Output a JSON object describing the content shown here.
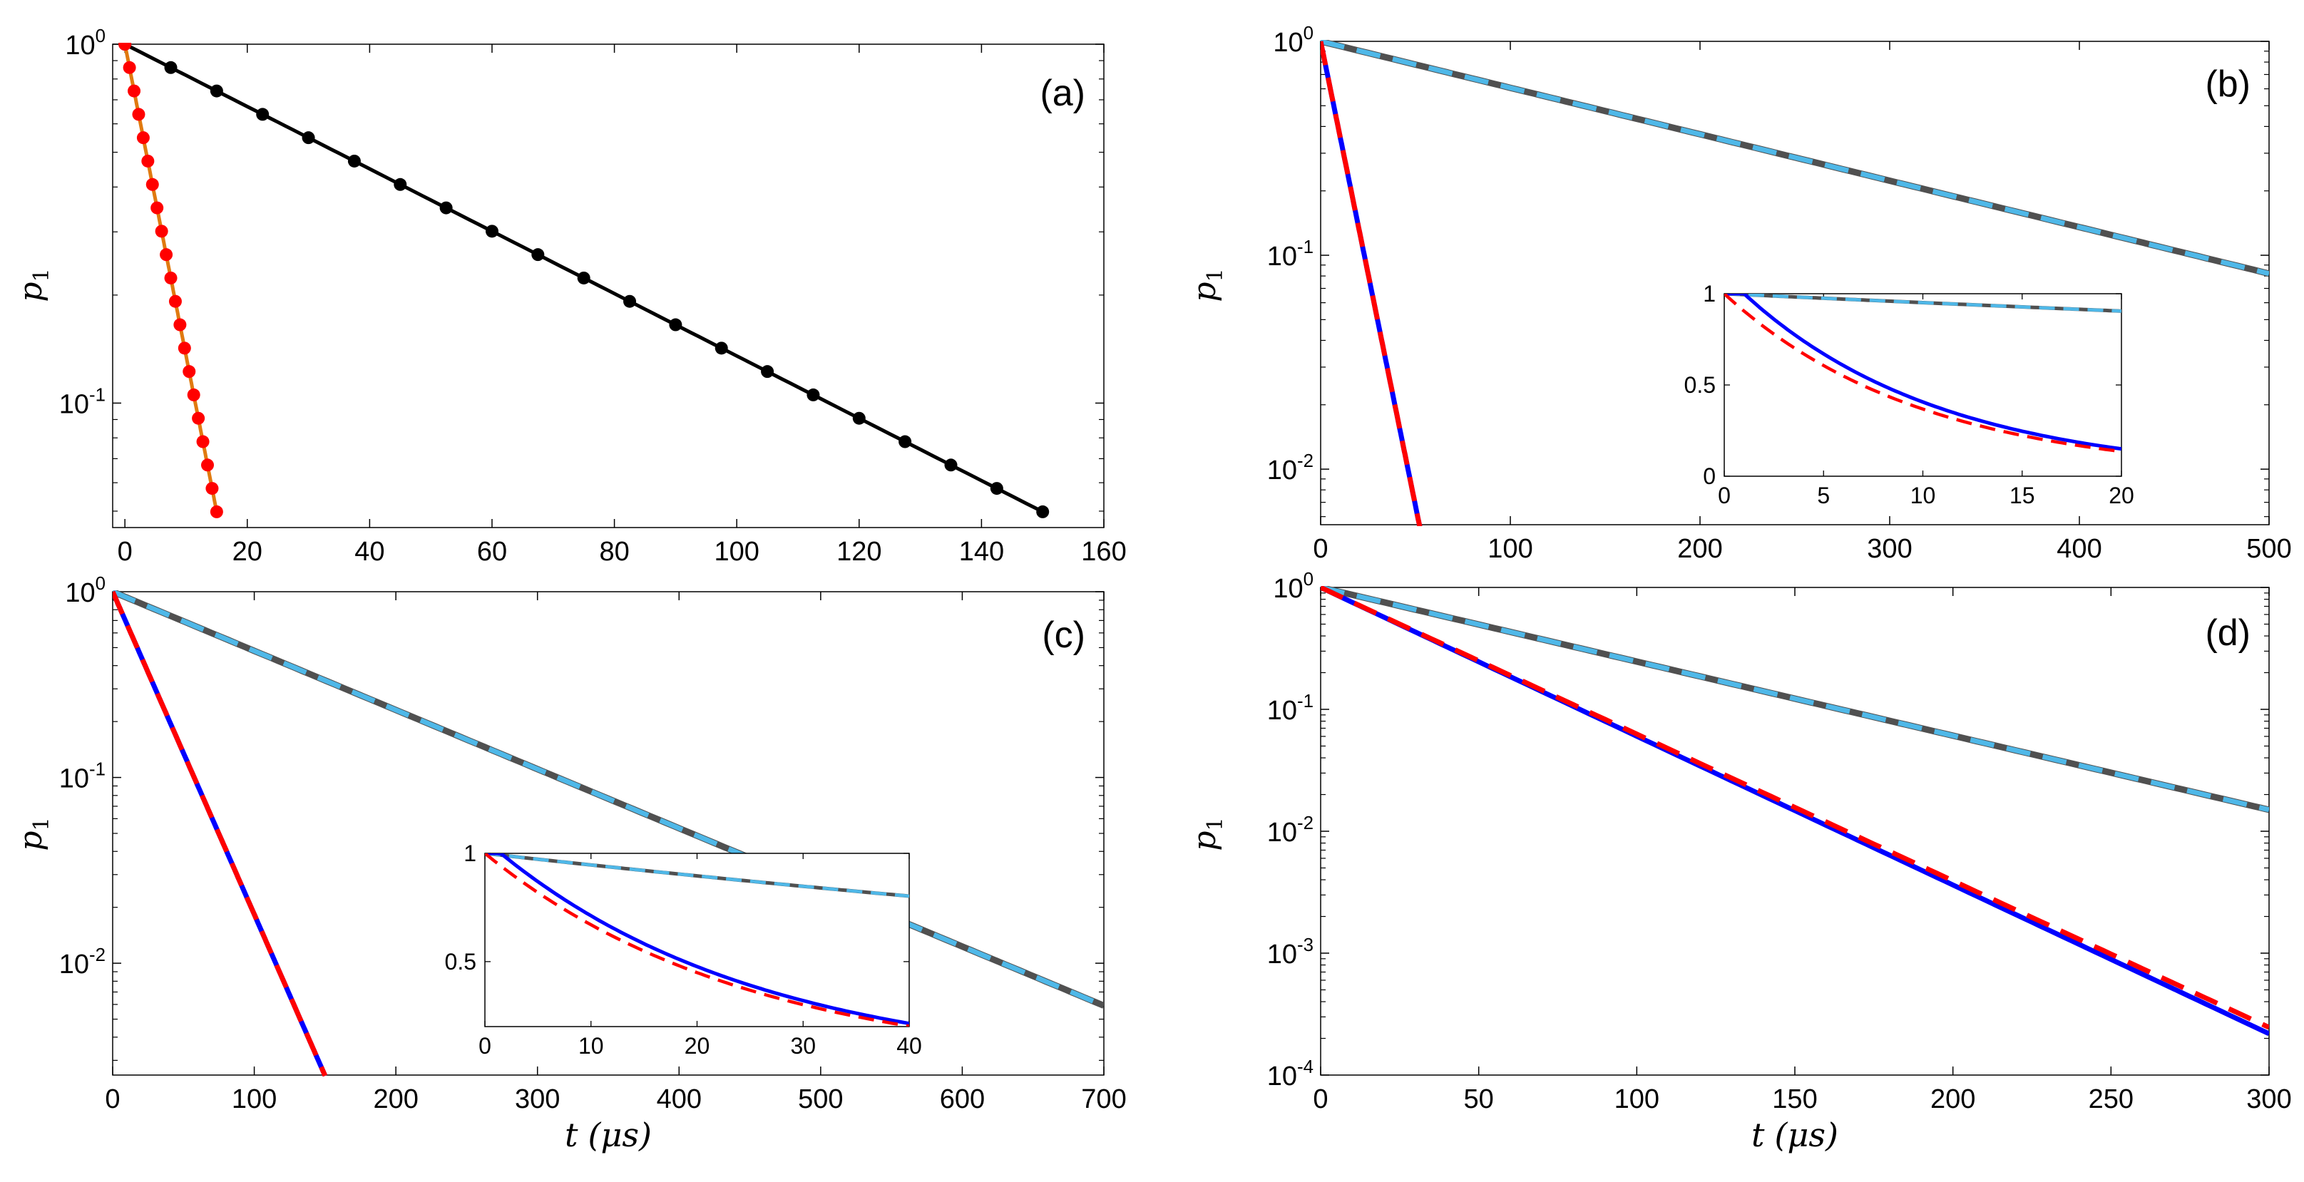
{
  "figure": {
    "xlabel_var": "t",
    "xlabel_unit": "(μs)"
  },
  "chart_data": [
    {
      "id": "a",
      "panel_label": "(a)",
      "type": "line",
      "yscale": "log",
      "ylabel": "p",
      "ylabel_sub": "1",
      "xlim": [
        -2,
        160
      ],
      "ylim": [
        0.045,
        1.0
      ],
      "xticks": [
        0,
        20,
        40,
        60,
        80,
        100,
        120,
        140,
        160
      ],
      "xticklabels": [
        "0",
        "20",
        "40",
        "60",
        "80",
        "100",
        "120",
        "140",
        "160"
      ],
      "yticks": [
        1,
        0.1
      ],
      "yticklabels": [
        {
          "base": "10",
          "exp": "0"
        },
        {
          "base": "10",
          "exp": "-1"
        }
      ],
      "series": [
        {
          "name": "black markers",
          "color": "#000000",
          "style": "solid-markers",
          "rate": 0.02,
          "x_start": 0,
          "x_end": 150,
          "marker_step": 7.5
        },
        {
          "name": "red markers",
          "color": "#ff0000",
          "line_color": "#e07a10",
          "style": "solid-markers",
          "rate": 0.2,
          "x_start": 0,
          "x_end": 15,
          "marker_step": 0.75
        }
      ]
    },
    {
      "id": "b",
      "panel_label": "(b)",
      "type": "line",
      "yscale": "log",
      "ylabel": "p",
      "ylabel_sub": "1",
      "xlim": [
        0,
        500
      ],
      "ylim": [
        0.0055,
        1.0
      ],
      "xticks": [
        0,
        100,
        200,
        300,
        400,
        500
      ],
      "xticklabels": [
        "0",
        "100",
        "200",
        "300",
        "400",
        "500"
      ],
      "yticks": [
        1,
        0.1,
        0.01
      ],
      "yticklabels": [
        {
          "base": "10",
          "exp": "0"
        },
        {
          "base": "10",
          "exp": "-1"
        },
        {
          "base": "10",
          "exp": "-2"
        }
      ],
      "series": [
        {
          "name": "slow solid",
          "color": "#505050",
          "style": "solid",
          "rate": 0.005,
          "x_end": 500
        },
        {
          "name": "slow dashed",
          "color": "#4fb8e8",
          "style": "dashed",
          "rate": 0.005,
          "x_end": 500
        },
        {
          "name": "fast solid",
          "color": "#0000ff",
          "style": "solid",
          "rate": 0.1,
          "x_end": 55
        },
        {
          "name": "fast dashed",
          "color": "#ff0000",
          "style": "dashed",
          "rate": 0.1,
          "x_end": 55
        }
      ],
      "inset": {
        "xlim": [
          0,
          20
        ],
        "ylim": [
          0,
          1
        ],
        "xticks": [
          0,
          5,
          10,
          15,
          20
        ],
        "xticklabels": [
          "0",
          "5",
          "10",
          "15",
          "20"
        ],
        "yticks": [
          0,
          0.5,
          1
        ],
        "yticklabels": [
          "0",
          "0.5",
          "1"
        ],
        "series": [
          {
            "name": "slow solid",
            "color": "#505050",
            "style": "solid",
            "kind": "exp",
            "rate": 0.005
          },
          {
            "name": "slow dashed",
            "color": "#4fb8e8",
            "style": "dashed",
            "kind": "exp",
            "rate": 0.005
          },
          {
            "name": "fast solid",
            "color": "#0000ff",
            "style": "solid",
            "kind": "exp_delay",
            "rate": 0.1,
            "delay": 1
          },
          {
            "name": "fast dashed",
            "color": "#ff0000",
            "style": "dashed",
            "kind": "exp",
            "rate": 0.1
          }
        ]
      }
    },
    {
      "id": "c",
      "panel_label": "(c)",
      "type": "line",
      "yscale": "log",
      "ylabel": "p",
      "ylabel_sub": "1",
      "xlim": [
        0,
        700
      ],
      "ylim": [
        0.0025,
        1.0
      ],
      "xticks": [
        0,
        100,
        200,
        300,
        400,
        500,
        600,
        700
      ],
      "xticklabels": [
        "0",
        "100",
        "200",
        "300",
        "400",
        "500",
        "600",
        "700"
      ],
      "yticks": [
        1,
        0.1,
        0.01
      ],
      "yticklabels": [
        {
          "base": "10",
          "exp": "0"
        },
        {
          "base": "10",
          "exp": "-1"
        },
        {
          "base": "10",
          "exp": "-2"
        }
      ],
      "series": [
        {
          "name": "slow solid",
          "color": "#505050",
          "style": "solid",
          "rate": 0.00733,
          "x_end": 700
        },
        {
          "name": "slow dashed",
          "color": "#4fb8e8",
          "style": "dashed",
          "rate": 0.00733,
          "x_end": 700
        },
        {
          "name": "fast solid",
          "color": "#0000ff",
          "style": "solid",
          "rate": 0.04,
          "x_end": 150
        },
        {
          "name": "fast dashed",
          "color": "#ff0000",
          "style": "dashed",
          "rate": 0.04,
          "x_end": 150
        }
      ],
      "inset": {
        "xlim": [
          0,
          40
        ],
        "ylim": [
          0.2,
          1
        ],
        "xticks": [
          0,
          10,
          20,
          30,
          40
        ],
        "xticklabels": [
          "0",
          "10",
          "20",
          "30",
          "40"
        ],
        "yticks": [
          0.5,
          1
        ],
        "yticklabels": [
          "0.5",
          "1"
        ],
        "series": [
          {
            "name": "slow solid",
            "color": "#505050",
            "style": "solid",
            "kind": "exp",
            "rate": 0.0055
          },
          {
            "name": "slow dashed",
            "color": "#4fb8e8",
            "style": "dashed",
            "kind": "exp",
            "rate": 0.0055
          },
          {
            "name": "fast solid",
            "color": "#0000ff",
            "style": "solid",
            "kind": "exp_delay",
            "rate": 0.04,
            "delay": 1.5
          },
          {
            "name": "fast dashed",
            "color": "#ff0000",
            "style": "dashed",
            "kind": "exp",
            "rate": 0.04
          }
        ]
      }
    },
    {
      "id": "d",
      "panel_label": "(d)",
      "type": "line",
      "yscale": "log",
      "ylabel": "p",
      "ylabel_sub": "1",
      "xlim": [
        0,
        300
      ],
      "ylim": [
        0.0001,
        1.0
      ],
      "xticks": [
        0,
        50,
        100,
        150,
        200,
        250,
        300
      ],
      "xticklabels": [
        "0",
        "50",
        "100",
        "150",
        "200",
        "250",
        "300"
      ],
      "yticks": [
        1,
        0.1,
        0.01,
        0.001,
        0.0001
      ],
      "yticklabels": [
        {
          "base": "10",
          "exp": "0"
        },
        {
          "base": "10",
          "exp": "-1"
        },
        {
          "base": "10",
          "exp": "-2"
        },
        {
          "base": "10",
          "exp": "-3"
        },
        {
          "base": "10",
          "exp": "-4"
        }
      ],
      "series": [
        {
          "name": "slow solid",
          "color": "#505050",
          "style": "solid",
          "rate": 0.014,
          "x_end": 300
        },
        {
          "name": "slow dashed",
          "color": "#4fb8e8",
          "style": "dashed",
          "rate": 0.014,
          "x_end": 300
        },
        {
          "name": "fast solid",
          "color": "#0000ff",
          "style": "solid",
          "rate": 0.0281,
          "x_end": 300
        },
        {
          "name": "fast dashed",
          "color": "#ff0000",
          "style": "dashed",
          "rate": 0.0277,
          "x_end": 300
        }
      ]
    }
  ]
}
